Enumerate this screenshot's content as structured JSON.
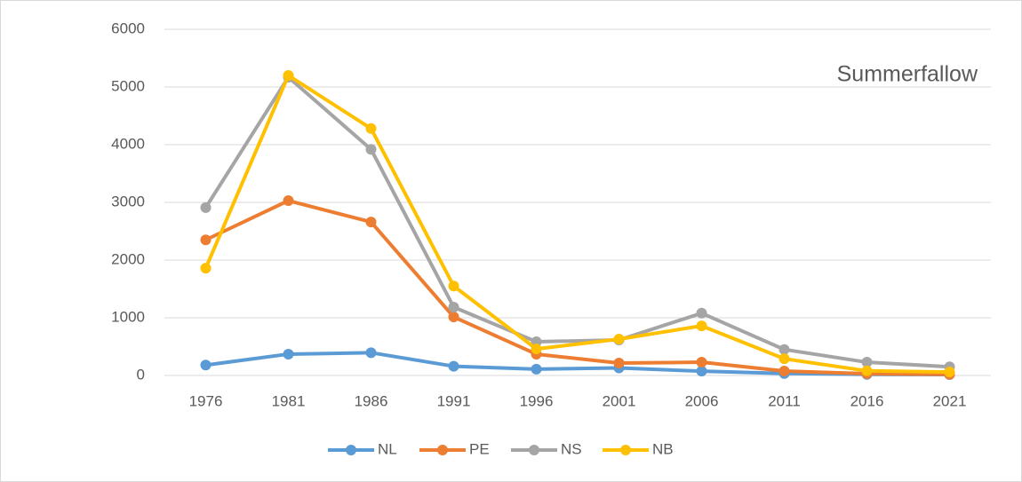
{
  "chart_data": {
    "type": "line",
    "title": "Summerfallow",
    "categories": [
      "1976",
      "1981",
      "1986",
      "1991",
      "1996",
      "2001",
      "2006",
      "2011",
      "2016",
      "2021"
    ],
    "series": [
      {
        "name": "NL",
        "color": "#5b9bd5",
        "values": [
          180,
          370,
          395,
          160,
          110,
          130,
          75,
          35,
          20,
          15
        ]
      },
      {
        "name": "PE",
        "color": "#ed7d31",
        "values": [
          2350,
          3030,
          2660,
          1015,
          370,
          215,
          230,
          77,
          30,
          20
        ]
      },
      {
        "name": "NS",
        "color": "#a5a5a5",
        "values": [
          2910,
          5170,
          3920,
          1185,
          585,
          615,
          1080,
          450,
          230,
          150
        ]
      },
      {
        "name": "NB",
        "color": "#ffc000",
        "values": [
          1860,
          5200,
          4280,
          1550,
          460,
          630,
          860,
          290,
          80,
          60
        ]
      }
    ],
    "ylim": [
      0,
      6000
    ],
    "yticks": [
      0,
      1000,
      2000,
      3000,
      4000,
      5000,
      6000
    ],
    "grid": true,
    "legend": "bottom"
  }
}
